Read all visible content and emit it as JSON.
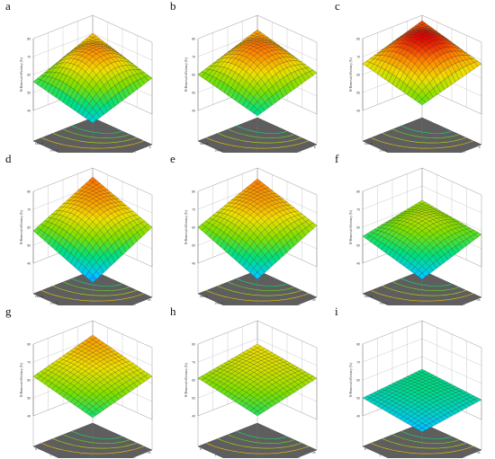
{
  "chart_data": [
    {
      "type": "surface",
      "panel": "a",
      "xlabel": "Number of cycles",
      "ylabel": "Pressure intensity (MPa)",
      "zlabel": "N-Removal efficiency (%)",
      "x_ticks": [
        "4",
        "5",
        "6",
        "7",
        "8"
      ],
      "y_ticks": [
        "80.00",
        "100.00",
        "120.00",
        "140.00",
        "160.00"
      ],
      "z_ticks": [
        "40",
        "50",
        "60",
        "70",
        "80"
      ],
      "zlim": [
        40,
        80
      ],
      "z_corners": [
        48,
        60,
        56,
        70
      ],
      "z_center": 71
    },
    {
      "type": "surface",
      "panel": "b",
      "xlabel": "Number of cycles",
      "ylabel": "Pressure intensity (MPa)",
      "zlabel": "N-Removal efficiency (%)",
      "x_ticks": [
        "4",
        "5",
        "6",
        "7",
        "8"
      ],
      "y_ticks": [
        "80.00",
        "100.00",
        "120.00",
        "140.00",
        "160.00"
      ],
      "z_ticks": [
        "40",
        "50",
        "60",
        "70",
        "80"
      ],
      "zlim": [
        40,
        80
      ],
      "z_corners": [
        52,
        63,
        60,
        72
      ],
      "z_center": 73
    },
    {
      "type": "surface",
      "panel": "c",
      "xlabel": "Number of cycles",
      "ylabel": "Pressure intensity (MPa)",
      "zlabel": "N-Removal efficiency (%)",
      "x_ticks": [
        "4",
        "5",
        "6",
        "7",
        "8"
      ],
      "y_ticks": [
        "80.00",
        "100.00",
        "120.00",
        "140.00",
        "160.00"
      ],
      "z_ticks": [
        "40",
        "50",
        "60",
        "70",
        "80"
      ],
      "zlim": [
        40,
        80
      ],
      "z_corners": [
        58,
        68,
        66,
        77
      ],
      "z_center": 79
    },
    {
      "type": "surface",
      "panel": "d",
      "xlabel": "Concentration(%)",
      "ylabel": "Pressure intensity (MPa)",
      "zlabel": "N-Removal efficiency (%)",
      "x_ticks": [
        "5",
        "10",
        "15",
        "20",
        "25"
      ],
      "y_ticks": [
        "80.00",
        "100.00",
        "120.00",
        "140.00",
        "160.00"
      ],
      "z_ticks": [
        "40",
        "50",
        "60",
        "70",
        "80"
      ],
      "zlim": [
        40,
        80
      ],
      "z_corners": [
        44,
        62,
        58,
        75
      ],
      "z_center": 68
    },
    {
      "type": "surface",
      "panel": "e",
      "xlabel": "Concentration(%)",
      "ylabel": "Pressure intensity (MPa)",
      "zlabel": "N-Removal efficiency (%)",
      "x_ticks": [
        "5",
        "10",
        "15",
        "20",
        "25"
      ],
      "y_ticks": [
        "80.00",
        "100.00",
        "120.00",
        "140.00",
        "160.00"
      ],
      "z_ticks": [
        "40",
        "50",
        "60",
        "70",
        "80"
      ],
      "zlim": [
        40,
        80
      ],
      "z_corners": [
        46,
        63,
        60,
        74
      ],
      "z_center": 68
    },
    {
      "type": "surface",
      "panel": "f",
      "xlabel": "Concentration(%)",
      "ylabel": "Pressure intensity (MPa)",
      "zlabel": "N-Removal efficiency (%)",
      "x_ticks": [
        "5",
        "10",
        "15",
        "20",
        "25"
      ],
      "y_ticks": [
        "80.00",
        "100.00",
        "120.00",
        "140.00",
        "160.00"
      ],
      "z_ticks": [
        "40",
        "50",
        "60",
        "70",
        "80"
      ],
      "zlim": [
        40,
        80
      ],
      "z_corners": [
        46,
        58,
        55,
        62
      ],
      "z_center": 62
    },
    {
      "type": "surface",
      "panel": "g",
      "xlabel": "Concentration(%)",
      "ylabel": "Number of cycles",
      "zlabel": "N-Removal efficiency (%)",
      "x_ticks": [
        "5",
        "10",
        "15",
        "20",
        "25"
      ],
      "y_ticks": [
        "4",
        "5",
        "6",
        "7",
        "8"
      ],
      "z_ticks": [
        "40",
        "50",
        "60",
        "70",
        "80"
      ],
      "zlim": [
        40,
        80
      ],
      "z_corners": [
        54,
        64,
        62,
        72
      ],
      "z_center": 66
    },
    {
      "type": "surface",
      "panel": "h",
      "xlabel": "Concentration(%)",
      "ylabel": "Number of cycles",
      "zlabel": "N-Removal efficiency (%)",
      "x_ticks": [
        "5",
        "10",
        "15",
        "20",
        "25"
      ],
      "y_ticks": [
        "4",
        "5",
        "6",
        "7",
        "8"
      ],
      "z_ticks": [
        "40",
        "50",
        "60",
        "70",
        "80"
      ],
      "zlim": [
        40,
        80
      ],
      "z_corners": [
        55,
        63,
        61,
        67
      ],
      "z_center": 64
    },
    {
      "type": "surface",
      "panel": "i",
      "xlabel": "Concentration(%)",
      "ylabel": "Number of cycles",
      "zlabel": "N-Removal efficiency (%)",
      "x_ticks": [
        "5",
        "10",
        "15",
        "20",
        "25"
      ],
      "y_ticks": [
        "4",
        "5",
        "6",
        "7",
        "8"
      ],
      "z_ticks": [
        "40",
        "50",
        "60",
        "70",
        "80"
      ],
      "zlim": [
        40,
        80
      ],
      "z_corners": [
        46,
        51,
        50,
        53
      ],
      "z_center": 52
    }
  ],
  "colormap": [
    "#1f3cff",
    "#00c8ff",
    "#00e07a",
    "#7ee000",
    "#f0e000",
    "#ff8000",
    "#e00000"
  ]
}
